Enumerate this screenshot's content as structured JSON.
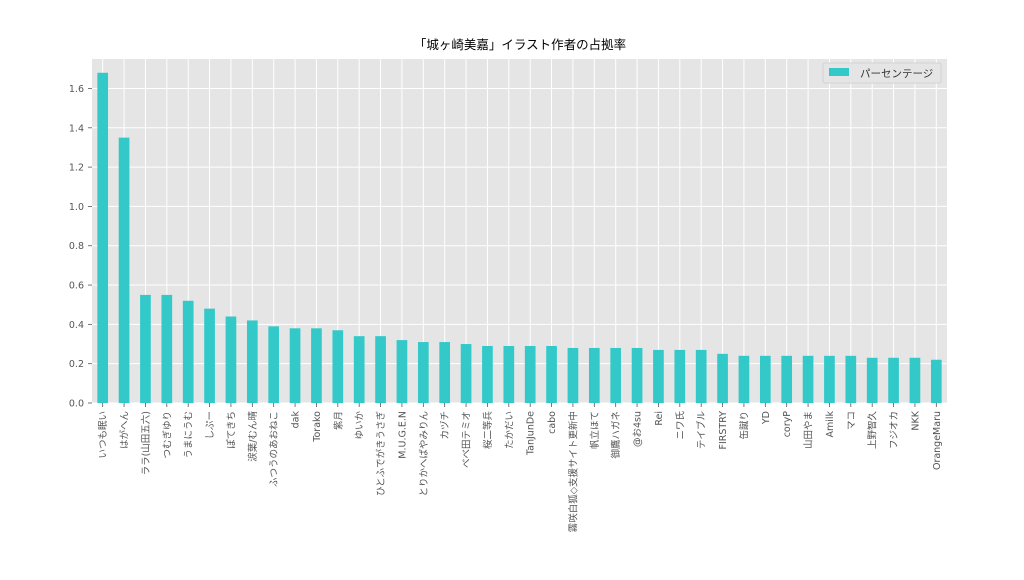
{
  "chart_data": {
    "type": "bar",
    "title": "「城ヶ崎美嘉」イラスト作者の占拠率",
    "xlabel": "",
    "ylabel": "",
    "ylim": [
      0,
      1.75
    ],
    "yticks": [
      0.0,
      0.2,
      0.4,
      0.6,
      0.8,
      1.0,
      1.2,
      1.4,
      1.6
    ],
    "ytick_labels": [
      "0.0",
      "0.2",
      "0.4",
      "0.6",
      "0.8",
      "1.0",
      "1.2",
      "1.4",
      "1.6"
    ],
    "grid": true,
    "legend_position": "top-right",
    "bar_color": "#33c9c9",
    "background_color": "#e5e5e5",
    "series": [
      {
        "name": "パーセンテージ",
        "values": [
          1.68,
          1.35,
          0.55,
          0.55,
          0.52,
          0.48,
          0.44,
          0.42,
          0.39,
          0.38,
          0.38,
          0.37,
          0.34,
          0.34,
          0.32,
          0.31,
          0.31,
          0.3,
          0.29,
          0.29,
          0.29,
          0.29,
          0.28,
          0.28,
          0.28,
          0.28,
          0.27,
          0.27,
          0.27,
          0.25,
          0.24,
          0.24,
          0.24,
          0.24,
          0.24,
          0.24,
          0.23,
          0.23,
          0.23,
          0.22
        ]
      }
    ],
    "categories": [
      "いつも眠い",
      "はがへん",
      "ララ(山田五六)",
      "つむぎゆり",
      "うまにうむ",
      "しぷー",
      "ぽてきち",
      "涙葉/むん晴",
      "ふつうのあおねこ",
      "dak",
      "Torako",
      "紫月",
      "ゆいか",
      "ひとふでがきうさぎ",
      "M.U.G.E.N",
      "とりかへばやみりん",
      "カヅチ",
      "べべ田テミオ",
      "桜二等兵",
      "たかだい",
      "TanJunDe",
      "cabo",
      "霧咲白狐◇支援サイト更新中",
      "帆立ほて",
      "御鷹ハガネ",
      "@お4su",
      "Rei",
      "ニワ氏",
      "テイブル",
      "FIRSTRY",
      "缶蹴り",
      "YD",
      "coryP",
      "山田やま",
      "Amilk",
      "マコ",
      "上野智久",
      "フジオカ",
      "NKK",
      "OrangeMaru"
    ]
  }
}
